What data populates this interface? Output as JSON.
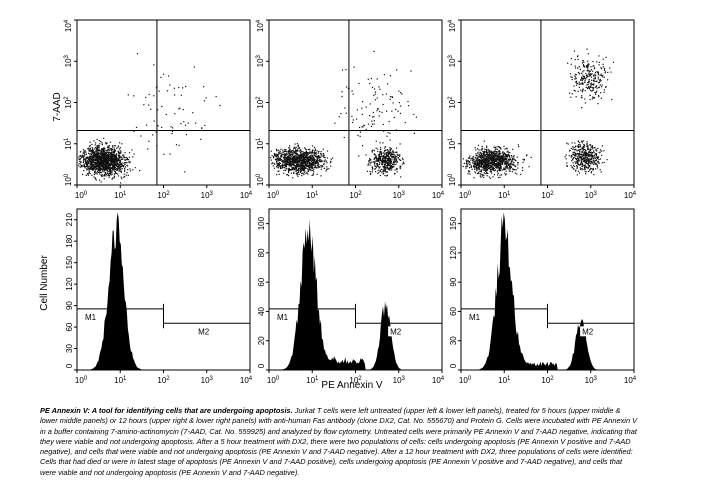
{
  "figure": {
    "y_label_top": "7-AAD",
    "y_label_bottom": "Cell Number",
    "x_label": "PE Annexin V",
    "gate_labels": [
      "M1",
      "M2"
    ],
    "scatter_x_ticks": [
      "10",
      "10",
      "10",
      "10",
      "10"
    ],
    "log_exponents": [
      "0",
      "1",
      "2",
      "3",
      "4"
    ],
    "hist_y_ticks": [
      [
        "0",
        "30",
        "60",
        "90",
        "120",
        "150",
        "180",
        "210"
      ],
      [
        "0",
        "20",
        "40",
        "60",
        "80",
        "100"
      ],
      [
        "0",
        "30",
        "60",
        "90",
        "120",
        "150"
      ]
    ]
  },
  "chart_data": [
    {
      "type": "scatter",
      "panel": "upper left",
      "xlabel": "",
      "ylabel": "7-AAD",
      "log_scale": true,
      "xlim": [
        1,
        10000
      ],
      "ylim": [
        1,
        10000
      ],
      "populations": [
        {
          "x_center": 3,
          "y_center": 3,
          "share": "main"
        },
        {
          "x_center": 200,
          "y_center": 50,
          "share": "sparse"
        }
      ]
    },
    {
      "type": "scatter",
      "panel": "upper middle",
      "xlabel": "",
      "ylabel": "",
      "log_scale": true,
      "xlim": [
        1,
        10000
      ],
      "ylim": [
        1,
        10000
      ],
      "populations": [
        {
          "x_center": 5,
          "y_center": 3
        },
        {
          "x_center": 500,
          "y_center": 3
        },
        {
          "x_center": 500,
          "y_center": 100
        }
      ]
    },
    {
      "type": "scatter",
      "panel": "upper right",
      "xlabel": "",
      "ylabel": "",
      "log_scale": true,
      "xlim": [
        1,
        10000
      ],
      "ylim": [
        1,
        10000
      ],
      "populations": [
        {
          "x_center": 5,
          "y_center": 3
        },
        {
          "x_center": 700,
          "y_center": 3
        },
        {
          "x_center": 800,
          "y_center": 300
        }
      ]
    },
    {
      "type": "area",
      "panel": "lower left",
      "xlabel": "",
      "ylabel": "Cell Number",
      "log_scale": true,
      "xlim": [
        1,
        10000
      ],
      "ylim": [
        0,
        210
      ],
      "peaks": [
        {
          "x": 8,
          "y": 200
        }
      ],
      "gates": {
        "M1": [
          1,
          100
        ],
        "M2": [
          100,
          10000
        ]
      }
    },
    {
      "type": "area",
      "panel": "lower middle",
      "xlabel": "PE Annexin V",
      "ylabel": "",
      "log_scale": true,
      "xlim": [
        1,
        10000
      ],
      "ylim": [
        0,
        110
      ],
      "peaks": [
        {
          "x": 8,
          "y": 95
        },
        {
          "x": 500,
          "y": 45
        }
      ],
      "gates": {
        "M1": [
          1,
          100
        ],
        "M2": [
          100,
          10000
        ]
      }
    },
    {
      "type": "area",
      "panel": "lower right",
      "xlabel": "",
      "ylabel": "",
      "log_scale": true,
      "xlim": [
        1,
        10000
      ],
      "ylim": [
        0,
        160
      ],
      "peaks": [
        {
          "x": 10,
          "y": 140
        },
        {
          "x": 600,
          "y": 55
        }
      ],
      "gates": {
        "M1": [
          1,
          100
        ],
        "M2": [
          100,
          10000
        ]
      }
    }
  ],
  "caption": {
    "title": "PE Annexin V: A tool for identifying cells that are undergoing apoptosis.",
    "body": "Jurkat T cells were left untreated (upper left & lower left panels), treated for 5 hours (upper middle & lower middle panels) or 12 hours (upper right & lower right panels) with anti-human Fas antibody (clone DX2, Cat. No. 555670) and Protein G. Cells were incubated with PE Annexin V in a buffer containing 7-amino-actinomycin (7-AAD, Cat. No. 559925) and analyzed by flow cytometry. Untreated cells were primarily PE Annexin V and 7-AAD negative, indicating that they were viable and not undergoing apoptosis. After a 5 hour treatment with DX2, there were two populations of cells: cells undergoing apoptosis (PE Annexin V positive and 7-AAD negative), and cells that were viable and not undergoing apoptosis (PE Annexin V and 7-AAD negative). After a 12 hour treatment with DX2, three populations of cells were identified: Cells that had died or were in latest stage of apoptosis (PE Annexin V and 7-AAD positive), cells undergoing apoptosis (PE Annexin V positive and 7-AAD negative), and cells that were viable and not undergoing apoptosis (PE Annexin V and 7-AAD negative)."
  }
}
